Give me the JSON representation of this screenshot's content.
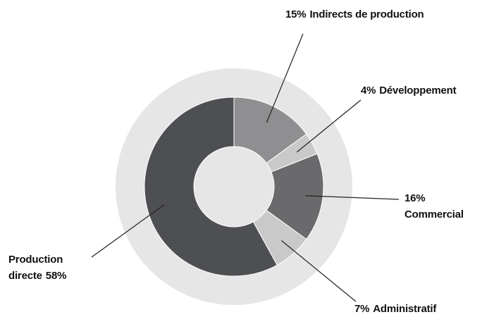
{
  "chart_data": {
    "type": "donut",
    "categories": [
      "Indirects de production",
      "Développement",
      "Commercial",
      "Administratif",
      "Production directe"
    ],
    "values": [
      15,
      4,
      16,
      7,
      58
    ],
    "value_labels": [
      "15%",
      "4%",
      "16%",
      "7%",
      "58%"
    ],
    "colors": [
      "#8f8f91",
      "#c9c9c9",
      "#6a6a6c",
      "#c9c9c9",
      "#4e4f53"
    ],
    "ring_color": "#e6e6e6"
  }
}
